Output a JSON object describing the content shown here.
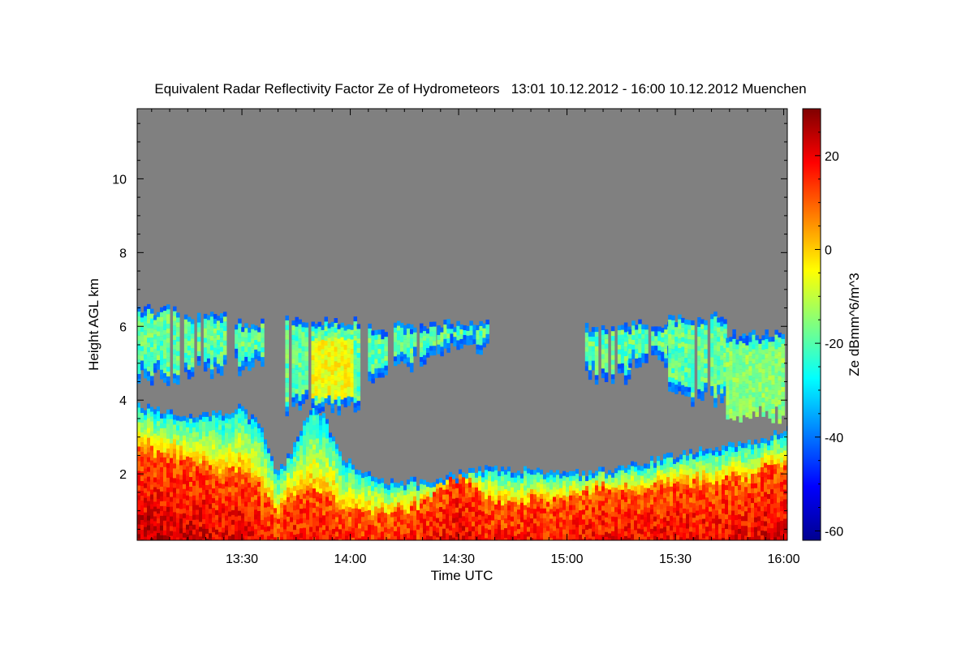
{
  "chart_data": {
    "type": "heatmap",
    "title": "Equivalent Radar Reflectivity Factor Ze of Hydrometeors   13:01 10.12.2012 - 16:00 10.12.2012 Muenchen",
    "xlabel": "Time UTC",
    "ylabel": "Height AGL km",
    "colorbar_label": "Ze dBmm^6/m^3",
    "x_range_minutes": [
      781,
      961
    ],
    "y_range_km": [
      0.2,
      11.9
    ],
    "colorbar_range": [
      -62,
      30
    ],
    "x_ticks": [
      {
        "minute": 810,
        "label": "13:30"
      },
      {
        "minute": 840,
        "label": "14:00"
      },
      {
        "minute": 870,
        "label": "14:30"
      },
      {
        "minute": 900,
        "label": "15:00"
      },
      {
        "minute": 930,
        "label": "15:30"
      },
      {
        "minute": 960,
        "label": "16:00"
      }
    ],
    "y_ticks": [
      {
        "value": 2,
        "label": "2"
      },
      {
        "value": 4,
        "label": "4"
      },
      {
        "value": 6,
        "label": "6"
      },
      {
        "value": 8,
        "label": "8"
      },
      {
        "value": 10,
        "label": "10"
      }
    ],
    "colorbar_ticks": [
      {
        "value": 20,
        "label": "20"
      },
      {
        "value": 0,
        "label": "0"
      },
      {
        "value": -20,
        "label": "-20"
      },
      {
        "value": -40,
        "label": "-40"
      },
      {
        "value": -60,
        "label": "-60"
      }
    ],
    "no_data_color": "#808080",
    "colormap": "jet",
    "echo_layers": {
      "time_minutes": [
        781,
        790,
        800,
        810,
        815,
        820,
        825,
        830,
        833,
        838,
        842,
        846,
        850,
        860,
        870,
        880,
        890,
        900,
        910,
        920,
        930,
        940,
        950,
        955,
        961
      ],
      "low_cloud_top_km": [
        3.9,
        3.7,
        3.6,
        3.8,
        3.3,
        2.0,
        2.8,
        4.0,
        3.5,
        2.4,
        2.2,
        2.0,
        1.8,
        1.8,
        2.0,
        2.2,
        2.1,
        2.0,
        2.1,
        2.3,
        2.5,
        2.7,
        2.8,
        3.0,
        3.2
      ],
      "strong_echo_top_km": [
        2.8,
        2.5,
        2.2,
        2.1,
        1.6,
        1.0,
        1.5,
        1.6,
        1.4,
        1.2,
        1.0,
        1.0,
        0.9,
        1.2,
        2.0,
        1.2,
        1.3,
        1.4,
        1.6,
        1.6,
        1.7,
        1.8,
        1.9,
        2.2,
        2.3
      ],
      "upper_layer": [
        {
          "start": 781,
          "end": 792,
          "base_km": 4.6,
          "top_km": 6.4
        },
        {
          "start": 794,
          "end": 806,
          "base_km": 4.8,
          "top_km": 6.3
        },
        {
          "start": 808,
          "end": 816,
          "base_km": 4.9,
          "top_km": 6.0
        },
        {
          "start": 822,
          "end": 842,
          "base_km": 3.8,
          "top_km": 6.1
        },
        {
          "start": 844,
          "end": 850,
          "base_km": 4.6,
          "top_km": 5.9
        },
        {
          "start": 852,
          "end": 864,
          "base_km": 5.0,
          "top_km": 6.0
        },
        {
          "start": 864,
          "end": 878,
          "base_km": 5.3,
          "top_km": 6.0
        },
        {
          "start": 905,
          "end": 917,
          "base_km": 4.6,
          "top_km": 5.9
        },
        {
          "start": 917,
          "end": 928,
          "base_km": 5.0,
          "top_km": 6.0
        },
        {
          "start": 928,
          "end": 944,
          "base_km": 4.0,
          "top_km": 6.2
        },
        {
          "start": 944,
          "end": 961,
          "base_km": 3.6,
          "top_km": 5.7
        }
      ]
    }
  }
}
